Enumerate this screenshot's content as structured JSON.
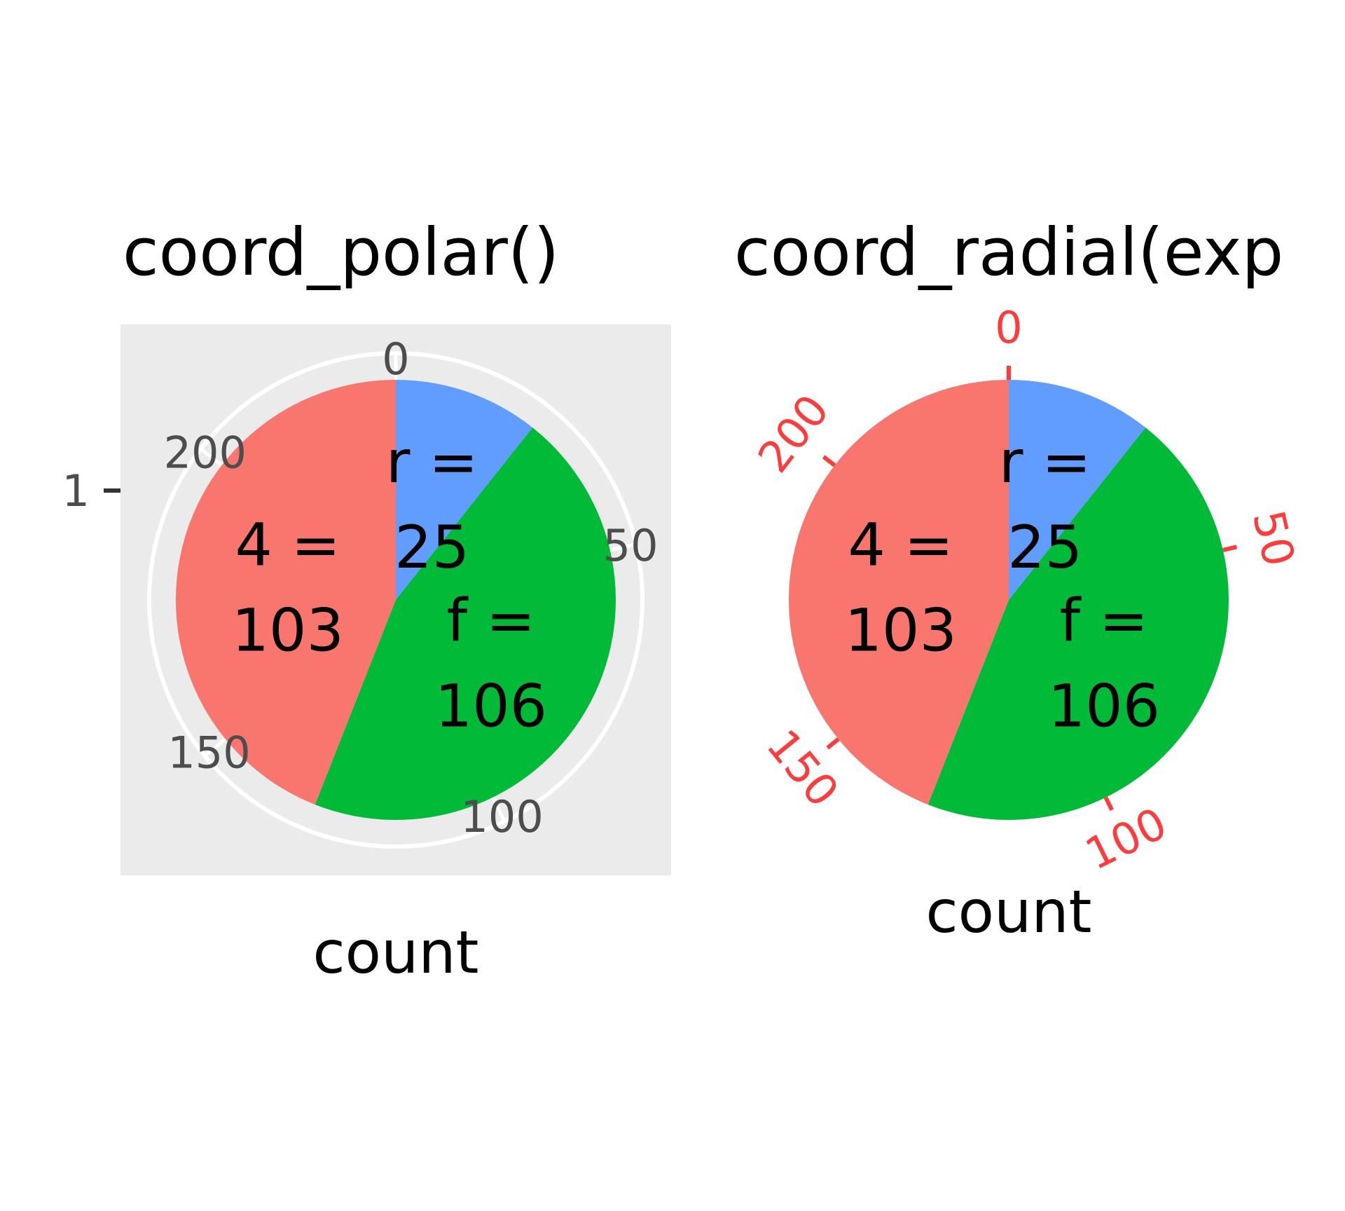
{
  "colors": {
    "panel_bg": "#EBEBEB",
    "grid": "#FFFFFF",
    "tick_text": "#4D4D4D",
    "radial_axis": "#FF3B3B",
    "slices": [
      "#F8766D",
      "#00BA38",
      "#619CFF"
    ]
  },
  "chart_data": [
    {
      "type": "pie",
      "title": "coord_polar()",
      "xlabel": "count",
      "ylabel": "",
      "y_tick_labels": [
        "1"
      ],
      "theta_range": [
        0,
        234
      ],
      "theta_ticks": [
        0,
        50,
        100,
        150,
        200
      ],
      "theta_tick_labels": [
        "0",
        "50",
        "100",
        "150",
        "200"
      ],
      "slices": [
        {
          "category": "r",
          "value": 25,
          "label_line1": "r =",
          "label_line2": "25",
          "color": "#619CFF"
        },
        {
          "category": "f",
          "value": 106,
          "label_line1": "f =",
          "label_line2": "106",
          "color": "#00BA38"
        },
        {
          "category": "4",
          "value": 103,
          "label_line1": "4 =",
          "label_line2": "103",
          "color": "#F8766D"
        }
      ],
      "background": "grey panel with white grid",
      "grid": true
    },
    {
      "type": "pie",
      "title": "coord_radial(exp",
      "xlabel": "count",
      "ylabel": "",
      "theta_range": [
        0,
        234
      ],
      "theta_ticks": [
        0,
        50,
        100,
        150,
        200
      ],
      "theta_tick_labels": [
        "0",
        "50",
        "100",
        "150",
        "200"
      ],
      "slices": [
        {
          "category": "r",
          "value": 25,
          "label_line1": "r =",
          "label_line2": "25",
          "color": "#619CFF"
        },
        {
          "category": "f",
          "value": 106,
          "label_line1": "f =",
          "label_line2": "106",
          "color": "#00BA38"
        },
        {
          "category": "4",
          "value": 103,
          "label_line1": "4 =",
          "label_line2": "103",
          "color": "#F8766D"
        }
      ],
      "background": "none",
      "grid": false,
      "tick_color": "#FF3B3B"
    }
  ]
}
